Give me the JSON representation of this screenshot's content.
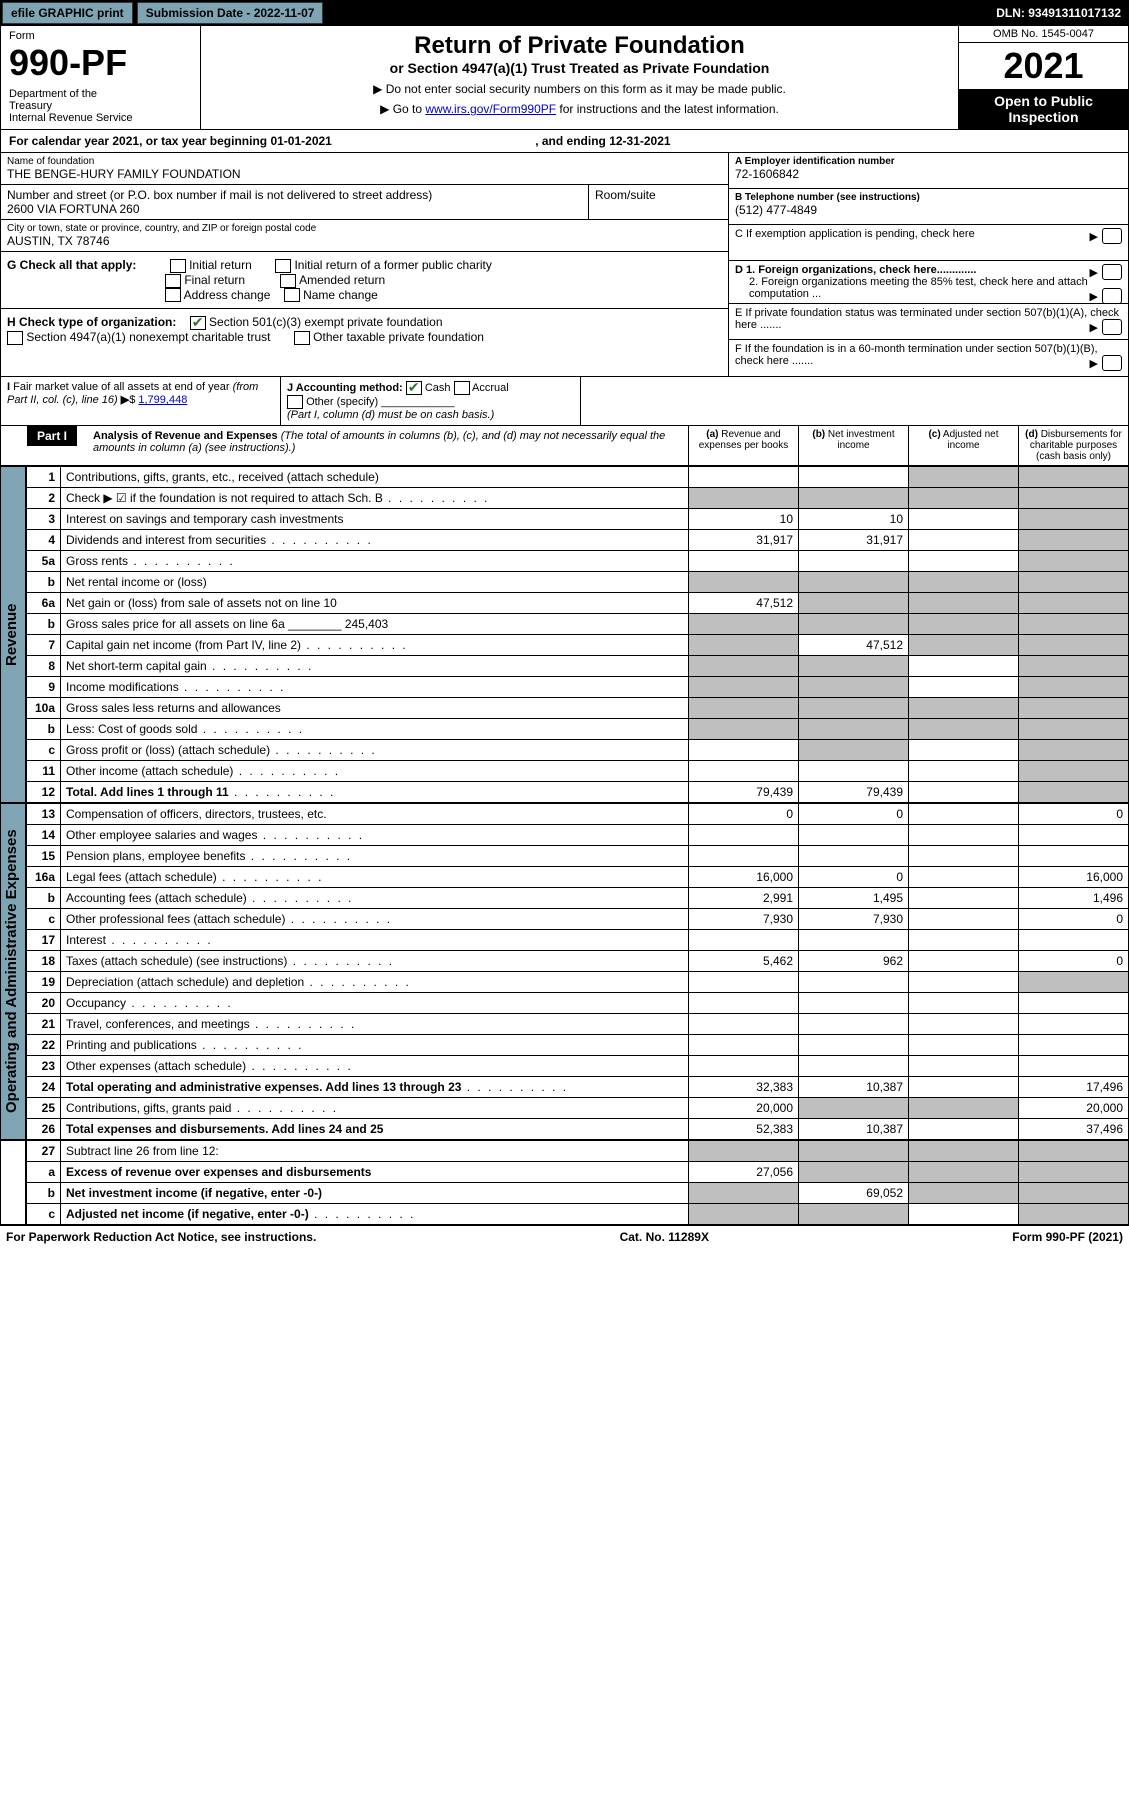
{
  "topbar": {
    "efile": "efile GRAPHIC print",
    "submission_label": "Submission Date - 2022-11-07",
    "dln": "DLN: 93491311017132"
  },
  "header": {
    "form_word": "Form",
    "form_number": "990-PF",
    "dept": "Department of the Treasury\nInternal Revenue Service",
    "title": "Return of Private Foundation",
    "subtitle": "or Section 4947(a)(1) Trust Treated as Private Foundation",
    "note1": "▶ Do not enter social security numbers on this form as it may be made public.",
    "note2_prefix": "▶ Go to ",
    "note2_link": "www.irs.gov/Form990PF",
    "note2_suffix": " for instructions and the latest information.",
    "omb": "OMB No. 1545-0047",
    "year": "2021",
    "open": "Open to Public Inspection"
  },
  "calendar": {
    "prefix": "For calendar year 2021, or tax year beginning ",
    "begin": "01-01-2021",
    "mid": " , and ending ",
    "end": "12-31-2021"
  },
  "brand_color": "#7fa5b5",
  "info": {
    "name_label": "Name of foundation",
    "name": "THE BENGE-HURY FAMILY FOUNDATION",
    "addr_label": "Number and street (or P.O. box number if mail is not delivered to street address)",
    "addr": "2600 VIA FORTUNA 260",
    "room_label": "Room/suite",
    "city_label": "City or town, state or province, country, and ZIP or foreign postal code",
    "city": "AUSTIN, TX  78746",
    "a_label": "A Employer identification number",
    "a_val": "72-1606842",
    "b_label": "B Telephone number (see instructions)",
    "b_val": "(512) 477-4849",
    "c_label": "C If exemption application is pending, check here",
    "d1_label": "D 1. Foreign organizations, check here.............",
    "d2_label": "2. Foreign organizations meeting the 85% test, check here and attach computation ...",
    "e_label": "E If private foundation status was terminated under section 507(b)(1)(A), check here .......",
    "f_label": "F If the foundation is in a 60-month termination under section 507(b)(1)(B), check here ......."
  },
  "g": {
    "label": "G Check all that apply:",
    "opts": [
      "Initial return",
      "Initial return of a former public charity",
      "Final return",
      "Amended return",
      "Address change",
      "Name change"
    ]
  },
  "h": {
    "label": "H Check type of organization:",
    "opt1": "Section 501(c)(3) exempt private foundation",
    "opt2": "Section 4947(a)(1) nonexempt charitable trust",
    "opt3": "Other taxable private foundation"
  },
  "i": {
    "label": "I Fair market value of all assets at end of year (from Part II, col. (c), line 16) ▶$ ",
    "val": "1,799,448"
  },
  "j": {
    "label": "J Accounting method:",
    "cash": "Cash",
    "accrual": "Accrual",
    "other": "Other (specify)",
    "note": "(Part I, column (d) must be on cash basis.)"
  },
  "part1": {
    "tag": "Part I",
    "title": "Analysis of Revenue and Expenses",
    "note": " (The total of amounts in columns (b), (c), and (d) may not necessarily equal the amounts in column (a) (see instructions).)",
    "col_a": "(a) Revenue and expenses per books",
    "col_b": "(b) Net investment income",
    "col_c": "(c) Adjusted net income",
    "col_d": "(d) Disbursements for charitable purposes (cash basis only)"
  },
  "side_labels": {
    "revenue": "Revenue",
    "opex": "Operating and Administrative Expenses"
  },
  "rows": [
    {
      "n": "1",
      "d": "Contributions, gifts, grants, etc., received (attach schedule)",
      "a": "",
      "b": "",
      "c": "s",
      "dcol": "s"
    },
    {
      "n": "2",
      "d": "Check ▶ ☑ if the foundation is not required to attach Sch. B",
      "a": "s",
      "b": "s",
      "c": "s",
      "dcol": "s",
      "dots": true
    },
    {
      "n": "3",
      "d": "Interest on savings and temporary cash investments",
      "a": "10",
      "b": "10",
      "c": "",
      "dcol": "s"
    },
    {
      "n": "4",
      "d": "Dividends and interest from securities",
      "a": "31,917",
      "b": "31,917",
      "c": "",
      "dcol": "s",
      "dots": true
    },
    {
      "n": "5a",
      "d": "Gross rents",
      "a": "",
      "b": "",
      "c": "",
      "dcol": "s",
      "dots": true
    },
    {
      "n": "b",
      "d": "Net rental income or (loss)",
      "a": "s",
      "b": "s",
      "c": "s",
      "dcol": "s"
    },
    {
      "n": "6a",
      "d": "Net gain or (loss) from sale of assets not on line 10",
      "a": "47,512",
      "b": "s",
      "c": "s",
      "dcol": "s"
    },
    {
      "n": "b",
      "d": "Gross sales price for all assets on line 6a ________ 245,403",
      "a": "s",
      "b": "s",
      "c": "s",
      "dcol": "s"
    },
    {
      "n": "7",
      "d": "Capital gain net income (from Part IV, line 2)",
      "a": "s",
      "b": "47,512",
      "c": "s",
      "dcol": "s",
      "dots": true
    },
    {
      "n": "8",
      "d": "Net short-term capital gain",
      "a": "s",
      "b": "s",
      "c": "",
      "dcol": "s",
      "dots": true
    },
    {
      "n": "9",
      "d": "Income modifications",
      "a": "s",
      "b": "s",
      "c": "",
      "dcol": "s",
      "dots": true
    },
    {
      "n": "10a",
      "d": "Gross sales less returns and allowances",
      "a": "s",
      "b": "s",
      "c": "s",
      "dcol": "s"
    },
    {
      "n": "b",
      "d": "Less: Cost of goods sold",
      "a": "s",
      "b": "s",
      "c": "s",
      "dcol": "s",
      "dots": true
    },
    {
      "n": "c",
      "d": "Gross profit or (loss) (attach schedule)",
      "a": "",
      "b": "s",
      "c": "",
      "dcol": "s",
      "dots": true
    },
    {
      "n": "11",
      "d": "Other income (attach schedule)",
      "a": "",
      "b": "",
      "c": "",
      "dcol": "s",
      "dots": true
    },
    {
      "n": "12",
      "d": "Total. Add lines 1 through 11",
      "a": "79,439",
      "b": "79,439",
      "c": "",
      "dcol": "s",
      "bold": true,
      "dots": true
    }
  ],
  "rows2": [
    {
      "n": "13",
      "d": "Compensation of officers, directors, trustees, etc.",
      "a": "0",
      "b": "0",
      "c": "",
      "dcol": "0"
    },
    {
      "n": "14",
      "d": "Other employee salaries and wages",
      "a": "",
      "b": "",
      "c": "",
      "dcol": "",
      "dots": true
    },
    {
      "n": "15",
      "d": "Pension plans, employee benefits",
      "a": "",
      "b": "",
      "c": "",
      "dcol": "",
      "dots": true
    },
    {
      "n": "16a",
      "d": "Legal fees (attach schedule)",
      "a": "16,000",
      "b": "0",
      "c": "",
      "dcol": "16,000",
      "dots": true
    },
    {
      "n": "b",
      "d": "Accounting fees (attach schedule)",
      "a": "2,991",
      "b": "1,495",
      "c": "",
      "dcol": "1,496",
      "dots": true
    },
    {
      "n": "c",
      "d": "Other professional fees (attach schedule)",
      "a": "7,930",
      "b": "7,930",
      "c": "",
      "dcol": "0",
      "dots": true
    },
    {
      "n": "17",
      "d": "Interest",
      "a": "",
      "b": "",
      "c": "",
      "dcol": "",
      "dots": true
    },
    {
      "n": "18",
      "d": "Taxes (attach schedule) (see instructions)",
      "a": "5,462",
      "b": "962",
      "c": "",
      "dcol": "0",
      "dots": true
    },
    {
      "n": "19",
      "d": "Depreciation (attach schedule) and depletion",
      "a": "",
      "b": "",
      "c": "",
      "dcol": "s",
      "dots": true
    },
    {
      "n": "20",
      "d": "Occupancy",
      "a": "",
      "b": "",
      "c": "",
      "dcol": "",
      "dots": true
    },
    {
      "n": "21",
      "d": "Travel, conferences, and meetings",
      "a": "",
      "b": "",
      "c": "",
      "dcol": "",
      "dots": true
    },
    {
      "n": "22",
      "d": "Printing and publications",
      "a": "",
      "b": "",
      "c": "",
      "dcol": "",
      "dots": true
    },
    {
      "n": "23",
      "d": "Other expenses (attach schedule)",
      "a": "",
      "b": "",
      "c": "",
      "dcol": "",
      "dots": true
    },
    {
      "n": "24",
      "d": "Total operating and administrative expenses. Add lines 13 through 23",
      "a": "32,383",
      "b": "10,387",
      "c": "",
      "dcol": "17,496",
      "bold": true,
      "dots": true
    },
    {
      "n": "25",
      "d": "Contributions, gifts, grants paid",
      "a": "20,000",
      "b": "s",
      "c": "s",
      "dcol": "20,000",
      "dots": true
    },
    {
      "n": "26",
      "d": "Total expenses and disbursements. Add lines 24 and 25",
      "a": "52,383",
      "b": "10,387",
      "c": "",
      "dcol": "37,496",
      "bold": true
    }
  ],
  "rows3": [
    {
      "n": "27",
      "d": "Subtract line 26 from line 12:",
      "a": "s",
      "b": "s",
      "c": "s",
      "dcol": "s"
    },
    {
      "n": "a",
      "d": "Excess of revenue over expenses and disbursements",
      "a": "27,056",
      "b": "s",
      "c": "s",
      "dcol": "s",
      "bold": true
    },
    {
      "n": "b",
      "d": "Net investment income (if negative, enter -0-)",
      "a": "s",
      "b": "69,052",
      "c": "s",
      "dcol": "s",
      "bold": true
    },
    {
      "n": "c",
      "d": "Adjusted net income (if negative, enter -0-)",
      "a": "s",
      "b": "s",
      "c": "",
      "dcol": "s",
      "bold": true,
      "dots": true
    }
  ],
  "footer": {
    "left": "For Paperwork Reduction Act Notice, see instructions.",
    "mid": "Cat. No. 11289X",
    "right": "Form 990-PF (2021)"
  }
}
